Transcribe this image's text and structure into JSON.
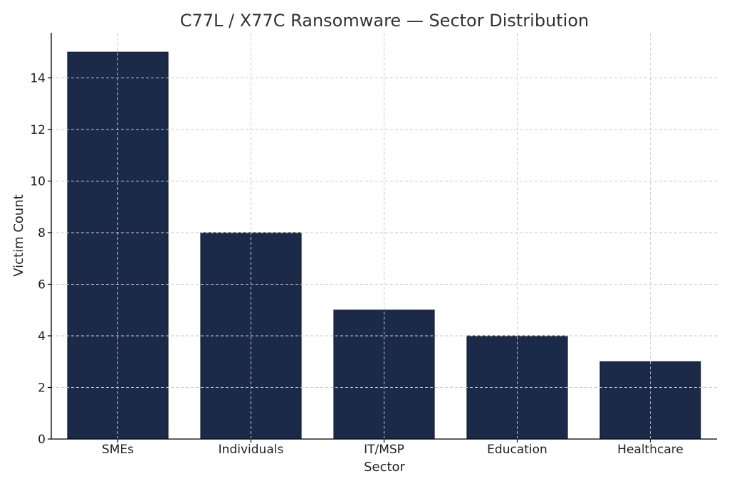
{
  "chart_data": {
    "type": "bar",
    "title": "C77L / X77C Ransomware — Sector Distribution",
    "xlabel": "Sector",
    "ylabel": "Victim Count",
    "categories": [
      "SMEs",
      "Individuals",
      "IT/MSP",
      "Education",
      "Healthcare"
    ],
    "values": [
      15,
      8,
      5,
      4,
      3
    ],
    "ylim": [
      0,
      15.75
    ],
    "yticks": [
      0,
      2,
      4,
      6,
      8,
      10,
      12,
      14
    ],
    "grid": true,
    "bar_color": "#1c2a4a",
    "bar_edge_color": "#0f1830"
  }
}
